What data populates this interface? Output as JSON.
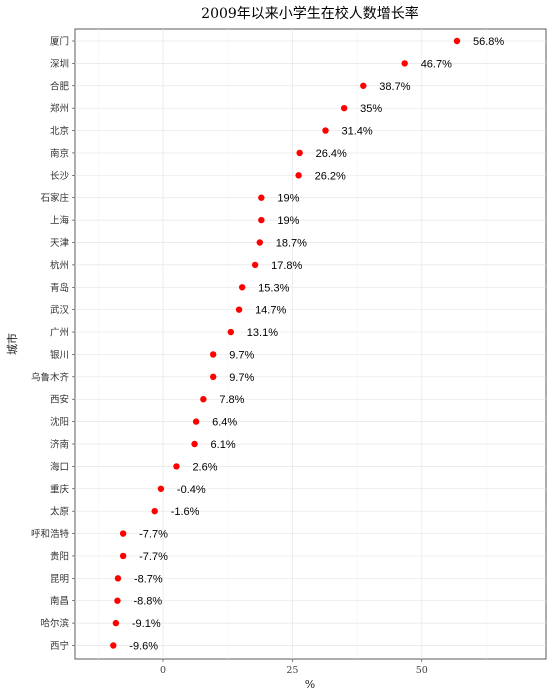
{
  "chart_data": {
    "type": "scatter",
    "title": "2009年以来小学生在校人数增长率",
    "xlabel": "%",
    "ylabel": "城市",
    "xlim": [
      -17,
      74
    ],
    "xticks": [
      0,
      25,
      50
    ],
    "categories": [
      "厦门",
      "深圳",
      "合肥",
      "郑州",
      "北京",
      "南京",
      "长沙",
      "石家庄",
      "上海",
      "天津",
      "杭州",
      "青岛",
      "武汉",
      "广州",
      "银川",
      "乌鲁木齐",
      "西安",
      "沈阳",
      "济南",
      "海口",
      "重庆",
      "太原",
      "呼和浩特",
      "贵阳",
      "昆明",
      "南昌",
      "哈尔滨",
      "西宁"
    ],
    "values": [
      56.8,
      46.7,
      38.7,
      35,
      31.4,
      26.4,
      26.2,
      19,
      19,
      18.7,
      17.8,
      15.3,
      14.7,
      13.1,
      9.7,
      9.7,
      7.8,
      6.4,
      6.1,
      2.6,
      -0.4,
      -1.6,
      -7.7,
      -7.7,
      -8.7,
      -8.8,
      -9.1,
      -9.6
    ],
    "labels": [
      "56.8%",
      "46.7%",
      "38.7%",
      "35%",
      "31.4%",
      "26.4%",
      "26.2%",
      "19%",
      "19%",
      "18.7%",
      "17.8%",
      "15.3%",
      "14.7%",
      "13.1%",
      "9.7%",
      "9.7%",
      "7.8%",
      "6.4%",
      "6.1%",
      "2.6%",
      "-0.4%",
      "-1.6%",
      "-7.7%",
      "-7.7%",
      "-8.7%",
      "-8.8%",
      "-9.1%",
      "-9.6%"
    ],
    "point_color": "#ff0000",
    "grid": true,
    "legend": "none"
  }
}
